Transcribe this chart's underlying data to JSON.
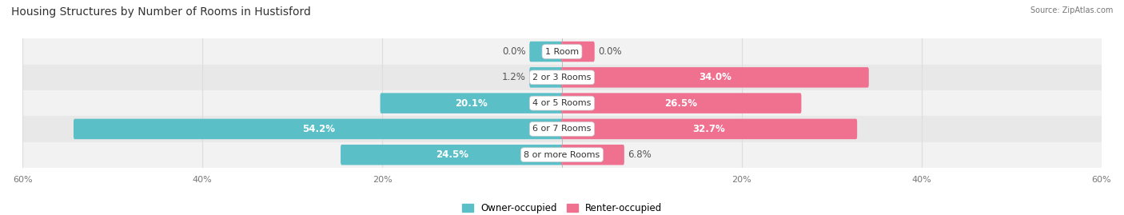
{
  "title": "Housing Structures by Number of Rooms in Hustisford",
  "source": "Source: ZipAtlas.com",
  "categories": [
    "1 Room",
    "2 or 3 Rooms",
    "4 or 5 Rooms",
    "6 or 7 Rooms",
    "8 or more Rooms"
  ],
  "owner_values": [
    0.0,
    1.2,
    20.1,
    54.2,
    24.5
  ],
  "renter_values": [
    0.0,
    34.0,
    26.5,
    32.7,
    6.8
  ],
  "owner_color": "#5bbfc8",
  "renter_color": "#f07090",
  "row_bg_colors": [
    "#f2f2f2",
    "#e8e8e8",
    "#f2f2f2",
    "#e8e8e8",
    "#f2f2f2"
  ],
  "axis_limit": 60.0,
  "bar_height": 0.55,
  "legend_owner": "Owner-occupied",
  "legend_renter": "Renter-occupied",
  "title_fontsize": 10,
  "label_fontsize": 8.5,
  "category_fontsize": 8,
  "axis_fontsize": 8,
  "one_room_stub": 3.5
}
